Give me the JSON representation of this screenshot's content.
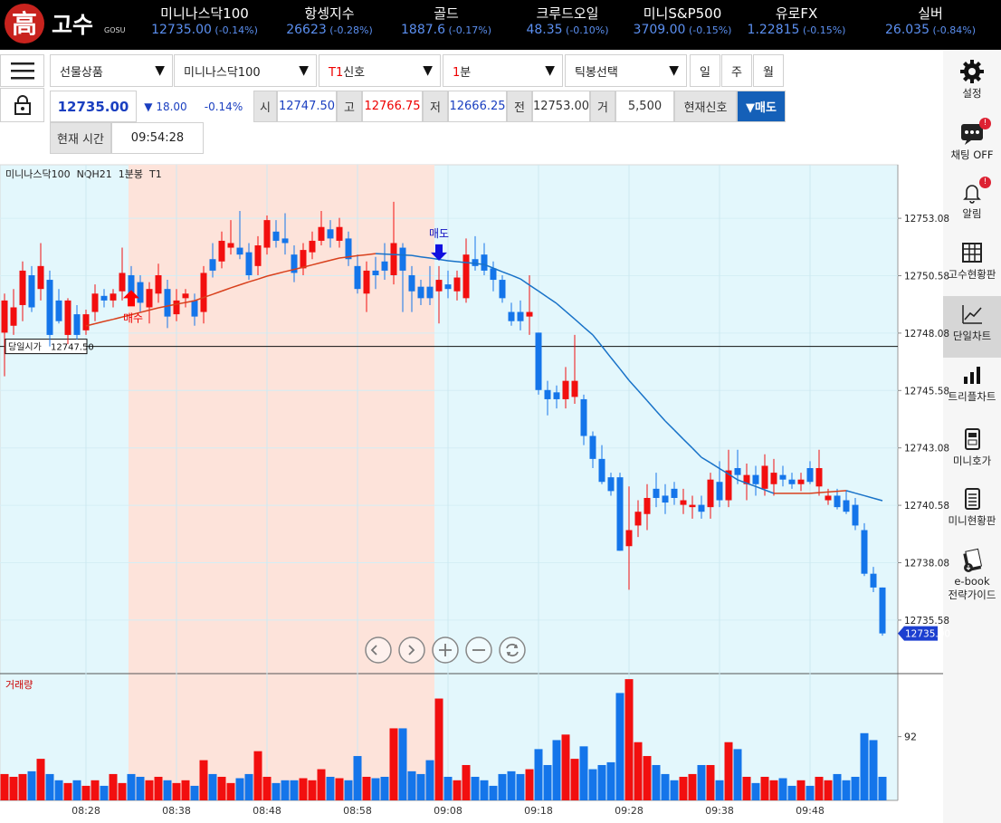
{
  "header": {
    "logo": {
      "mark": "高",
      "name": "고수",
      "sub": "GOSU"
    },
    "tickers": [
      {
        "name": "미니나스닥100",
        "price": "12735.00",
        "change": "(-0.14%)"
      },
      {
        "name": "항셍지수",
        "price": "26623",
        "change": "(-0.28%)"
      },
      {
        "name": "골드",
        "price": "1887.6",
        "change": "(-0.17%)"
      },
      {
        "name": "크루드오일",
        "price": "48.35",
        "change": "(-0.10%)"
      },
      {
        "name": "미니S&P500",
        "price": "3709.00",
        "change": "(-0.15%)"
      },
      {
        "name": "유로FX",
        "price": "1.22815",
        "change": "(-0.15%)"
      },
      {
        "name": "실버",
        "price": "26.035",
        "change": "(-0.84%)"
      }
    ]
  },
  "toolbar": {
    "selects": [
      {
        "text": "선물상품"
      },
      {
        "text": "미니나스닥100"
      },
      {
        "accent": "T1",
        "text": "신호"
      },
      {
        "accent": "1",
        "text": "분"
      },
      {
        "text": "틱봉선택"
      }
    ],
    "periods": [
      "일",
      "주",
      "월"
    ],
    "quote": {
      "price": "12735.00",
      "diff": "▼ 18.00",
      "rate": "-0.14%",
      "open_label": "시",
      "open": "12747.50",
      "high_label": "고",
      "high": "12766.75",
      "low_label": "저",
      "low": "12666.25",
      "prev_label": "전",
      "prev": "12753.00",
      "vol_label": "거",
      "vol": "5,500",
      "signal_label": "현재신호",
      "signal": "▼매도"
    },
    "time_label": "현재 시간",
    "time": "09:54:28"
  },
  "chart": {
    "type": "candlestick",
    "title": "미니나스닥100  NQH21  1분봉  T1",
    "volume_title": "거래량",
    "ylim": [
      12733.25,
      12755.41
    ],
    "yticks": [
      12735.58,
      12738.08,
      12740.58,
      12743.08,
      12745.58,
      12748.08,
      12750.58,
      12753.08
    ],
    "volume_ylim": [
      0,
      183
    ],
    "volume_yticks": [
      92
    ],
    "up_color": "#f20f0f",
    "down_color": "#1475ea",
    "ma_up_color": "#d8401c",
    "ma_down_color": "#1872c8",
    "categories": [
      null,
      null,
      null,
      null,
      null,
      null,
      null,
      null,
      null,
      "08:28",
      null,
      null,
      null,
      null,
      null,
      null,
      null,
      null,
      null,
      "08:38",
      null,
      null,
      null,
      null,
      null,
      null,
      null,
      null,
      null,
      "08:48",
      null,
      null,
      null,
      null,
      null,
      null,
      null,
      null,
      null,
      "08:58",
      null,
      null,
      null,
      null,
      null,
      null,
      null,
      null,
      null,
      "09:08",
      null,
      null,
      null,
      null,
      null,
      null,
      null,
      null,
      null,
      "09:18",
      null,
      null,
      null,
      null,
      null,
      null,
      null,
      null,
      null,
      "09:28",
      null,
      null,
      null,
      null,
      null,
      null,
      null,
      null,
      null,
      "09:38",
      null,
      null,
      null,
      null,
      null,
      null,
      null,
      null,
      null,
      "09:48",
      null,
      null,
      null,
      null,
      null,
      null,
      null,
      null
    ],
    "candles": [
      [
        12748.1,
        12749.8,
        12746.2,
        12749.5
      ],
      [
        12748.4,
        12750.0,
        12748.0,
        12749.2
      ],
      [
        12749.3,
        12751.2,
        12748.6,
        12750.8
      ],
      [
        12750.6,
        12751.0,
        12749.0,
        12749.2
      ],
      [
        12750.0,
        12752.0,
        12749.5,
        12751.0
      ],
      [
        12750.4,
        12750.8,
        12747.5,
        12748.0
      ],
      [
        12749.5,
        12750.0,
        12748.5,
        12748.6
      ],
      [
        12748.0,
        12749.6,
        12747.6,
        12749.5
      ],
      [
        12748.9,
        12749.3,
        12747.8,
        12748.0
      ],
      [
        12748.2,
        12749.1,
        12748.0,
        12748.9
      ],
      [
        12749.0,
        12750.2,
        12748.6,
        12749.8
      ],
      [
        12749.7,
        12750.0,
        12749.2,
        12749.5
      ],
      [
        12749.5,
        12750.0,
        12749.2,
        12749.8
      ],
      [
        12749.9,
        12751.8,
        12749.5,
        12750.7
      ],
      [
        12750.6,
        12751.0,
        12749.4,
        12749.8
      ],
      [
        12750.3,
        12750.6,
        12749.0,
        12749.4
      ],
      [
        12749.2,
        12750.3,
        12748.5,
        12750.0
      ],
      [
        12749.8,
        12751.1,
        12749.4,
        12750.6
      ],
      [
        12750.0,
        12750.4,
        12748.3,
        12748.8
      ],
      [
        12748.9,
        12750.0,
        12748.6,
        12749.5
      ],
      [
        12749.6,
        12750.0,
        12749.2,
        12749.8
      ],
      [
        12749.5,
        12749.8,
        12748.4,
        12748.8
      ],
      [
        12749.0,
        12751.0,
        12748.5,
        12750.7
      ],
      [
        12751.3,
        12752.0,
        12750.5,
        12750.8
      ],
      [
        12751.2,
        12752.5,
        12750.9,
        12752.1
      ],
      [
        12751.8,
        12753.0,
        12751.5,
        12752.0
      ],
      [
        12751.8,
        12753.4,
        12751.3,
        12751.5
      ],
      [
        12751.6,
        12752.0,
        12750.4,
        12750.6
      ],
      [
        12751.0,
        12752.3,
        12750.6,
        12751.9
      ],
      [
        12751.8,
        12753.2,
        12751.5,
        12753.0
      ],
      [
        12752.5,
        12753.0,
        12751.8,
        12752.1
      ],
      [
        12752.2,
        12753.3,
        12751.5,
        12752.0
      ],
      [
        12751.5,
        12751.9,
        12750.3,
        12750.7
      ],
      [
        12750.9,
        12752.0,
        12750.6,
        12751.7
      ],
      [
        12751.6,
        12752.5,
        12751.3,
        12752.1
      ],
      [
        12752.1,
        12753.4,
        12751.9,
        12752.7
      ],
      [
        12752.6,
        12753.0,
        12751.8,
        12752.2
      ],
      [
        12752.1,
        12753.1,
        12751.8,
        12752.7
      ],
      [
        12752.2,
        12752.5,
        12751.0,
        12751.3
      ],
      [
        12751.0,
        12751.5,
        12749.8,
        12750.0
      ],
      [
        12749.8,
        12751.2,
        12749.0,
        12750.8
      ],
      [
        12750.8,
        12751.4,
        12750.0,
        12750.6
      ],
      [
        12751.2,
        12752.0,
        12750.4,
        12750.8
      ],
      [
        12750.6,
        12753.8,
        12750.2,
        12752.0
      ],
      [
        12751.8,
        12752.0,
        12749.0,
        12750.8
      ],
      [
        12750.6,
        12751.0,
        12749.0,
        12749.9
      ],
      [
        12750.1,
        12750.4,
        12749.3,
        12749.6
      ],
      [
        12750.1,
        12751.0,
        12749.3,
        12749.6
      ],
      [
        12749.9,
        12751.0,
        12748.5,
        12750.4
      ],
      [
        12750.2,
        12750.8,
        12749.6,
        12750.0
      ],
      [
        12749.9,
        12750.8,
        12749.5,
        12750.5
      ],
      [
        12749.6,
        12752.2,
        12749.4,
        12751.5
      ],
      [
        12751.3,
        12752.3,
        12750.8,
        12751.0
      ],
      [
        12751.5,
        12752.0,
        12750.6,
        12750.8
      ],
      [
        12750.9,
        12751.2,
        12749.9,
        12750.4
      ],
      [
        12750.4,
        12750.6,
        12749.4,
        12749.6
      ],
      [
        12749.0,
        12749.4,
        12748.4,
        12748.6
      ],
      [
        12749.0,
        12749.5,
        12748.2,
        12748.6
      ],
      [
        12748.8,
        12750.6,
        12748.0,
        12749.0
      ],
      [
        12748.1,
        12748.1,
        12745.4,
        12745.6
      ],
      [
        12745.6,
        12746.0,
        12744.5,
        12745.2
      ],
      [
        12745.5,
        12745.8,
        12744.8,
        12745.2
      ],
      [
        12745.2,
        12746.6,
        12744.8,
        12746.0
      ],
      [
        12745.3,
        12748.0,
        12745.0,
        12746.0
      ],
      [
        12745.2,
        12745.4,
        12743.2,
        12743.6
      ],
      [
        12743.6,
        12743.8,
        12742.2,
        12742.6
      ],
      [
        12742.6,
        12743.2,
        12741.5,
        12741.6
      ],
      [
        12741.8,
        12742.0,
        12741.0,
        12741.2
      ],
      [
        12741.8,
        12742.0,
        12738.6,
        12738.6
      ],
      [
        12738.8,
        12741.4,
        12736.9,
        12739.5
      ],
      [
        12739.7,
        12740.8,
        12739.2,
        12740.3
      ],
      [
        12740.2,
        12741.5,
        12739.5,
        12740.9
      ],
      [
        12741.3,
        12742.0,
        12740.5,
        12740.9
      ],
      [
        12741.0,
        12741.5,
        12740.2,
        12740.7
      ],
      [
        12741.3,
        12741.6,
        12740.6,
        12740.9
      ],
      [
        12740.6,
        12741.3,
        12740.2,
        12740.8
      ],
      [
        12740.5,
        12741.0,
        12740.0,
        12740.6
      ],
      [
        12740.6,
        12741.0,
        12740.0,
        12740.3
      ],
      [
        12740.5,
        12742.0,
        12740.0,
        12741.7
      ],
      [
        12741.6,
        12742.5,
        12740.5,
        12740.8
      ],
      [
        12740.8,
        12743.0,
        12740.5,
        12742.1
      ],
      [
        12742.2,
        12743.0,
        12741.5,
        12741.9
      ],
      [
        12741.5,
        12742.4,
        12740.8,
        12741.9
      ],
      [
        12741.9,
        12742.3,
        12741.0,
        12741.5
      ],
      [
        12741.3,
        12742.8,
        12741.0,
        12742.3
      ],
      [
        12741.5,
        12742.6,
        12741.0,
        12742.0
      ],
      [
        12741.9,
        12742.3,
        12741.4,
        12741.7
      ],
      [
        12741.7,
        12742.0,
        12741.3,
        12741.5
      ],
      [
        12741.5,
        12742.0,
        12741.2,
        12741.7
      ],
      [
        12742.2,
        12742.5,
        12741.5,
        12741.6
      ],
      [
        12741.4,
        12743.0,
        12741.0,
        12742.2
      ],
      [
        12740.8,
        12741.3,
        12740.6,
        12741.0
      ],
      [
        12741.0,
        12741.3,
        12740.4,
        12740.5
      ],
      [
        12740.8,
        12741.2,
        12740.2,
        12740.3
      ],
      [
        12740.6,
        12740.9,
        12739.5,
        12739.7
      ],
      [
        12739.5,
        12739.8,
        12737.5,
        12737.6
      ],
      [
        12737.6,
        12737.9,
        12736.8,
        12737.0
      ],
      [
        12737.0,
        12737.0,
        12734.9,
        12735.0
      ]
    ],
    "volume": [
      38,
      34,
      38,
      42,
      60,
      38,
      29,
      25,
      29,
      21,
      29,
      21,
      38,
      25,
      38,
      34,
      29,
      34,
      29,
      25,
      29,
      21,
      58,
      38,
      34,
      25,
      32,
      38,
      71,
      34,
      25,
      29,
      29,
      32,
      29,
      45,
      34,
      32,
      29,
      64,
      34,
      32,
      34,
      104,
      104,
      42,
      38,
      58,
      147,
      34,
      29,
      51,
      34,
      29,
      21,
      38,
      42,
      38,
      45,
      74,
      51,
      87,
      95,
      60,
      78,
      45,
      51,
      55,
      155,
      175,
      84,
      64,
      51,
      38,
      29,
      34,
      38,
      51,
      51,
      29,
      84,
      74,
      34,
      25,
      34,
      29,
      32,
      21,
      29,
      21,
      34,
      29,
      38,
      29,
      34,
      97,
      87,
      34
    ],
    "ma": [
      null,
      null,
      null,
      null,
      null,
      null,
      null,
      null,
      null,
      12748.39,
      12748.49,
      12748.59,
      12748.68,
      12748.78,
      12748.88,
      12748.98,
      12749.08,
      12749.18,
      12749.26,
      12749.34,
      12749.41,
      12749.49,
      12749.63,
      12749.77,
      12749.91,
      12750.05,
      12750.18,
      12750.31,
      12750.43,
      12750.56,
      12750.66,
      12750.76,
      12750.85,
      12750.95,
      12751.05,
      12751.15,
      12751.25,
      12751.35,
      12751.4,
      12751.45,
      12751.49,
      12751.54,
      12751.52,
      12751.5,
      12751.48,
      12751.46,
      12751.4,
      12751.35,
      12751.29,
      12751.23,
      12751.19,
      12751.15,
      12751.11,
      12751.07,
      12750.91,
      12750.75,
      12750.6,
      12750.44,
      12750.17,
      12749.91,
      12749.64,
      12749.37,
      12749.03,
      12748.69,
      12748.34,
      12748.0,
      12747.51,
      12747.01,
      12746.52,
      12746.02,
      12745.58,
      12745.14,
      12744.69,
      12744.25,
      12743.86,
      12743.46,
      12743.07,
      12742.67,
      12742.43,
      12742.18,
      12741.94,
      12741.69,
      12741.54,
      12741.4,
      12741.25,
      12741.1,
      12741.1,
      12741.1,
      12741.1,
      12741.1,
      12741.13,
      12741.16,
      12741.19,
      12741.22,
      12741.11,
      12741.0,
      12740.89,
      12740.78
    ],
    "open_line": {
      "label": "당일시가",
      "value": 12747.5,
      "value_label": "12747.50"
    },
    "last_price": {
      "value": 12735.0,
      "label": "12735.00"
    },
    "signals": [
      {
        "text": "매수",
        "candle": 14,
        "side": "buy"
      },
      {
        "text": "매도",
        "candle": 48,
        "side": "sell"
      }
    ]
  },
  "sidebar": [
    {
      "label": "설정"
    },
    {
      "label": "채팅 OFF",
      "badge": "!"
    },
    {
      "label": "알림",
      "badge": "!"
    },
    {
      "label": "고수현황판"
    },
    {
      "label": "단일차트",
      "active": true
    },
    {
      "label": "트리플차트"
    },
    {
      "label": "미니호가"
    },
    {
      "label": "미니현황판"
    },
    {
      "label": "e-book",
      "label2": "전략가이드"
    }
  ]
}
